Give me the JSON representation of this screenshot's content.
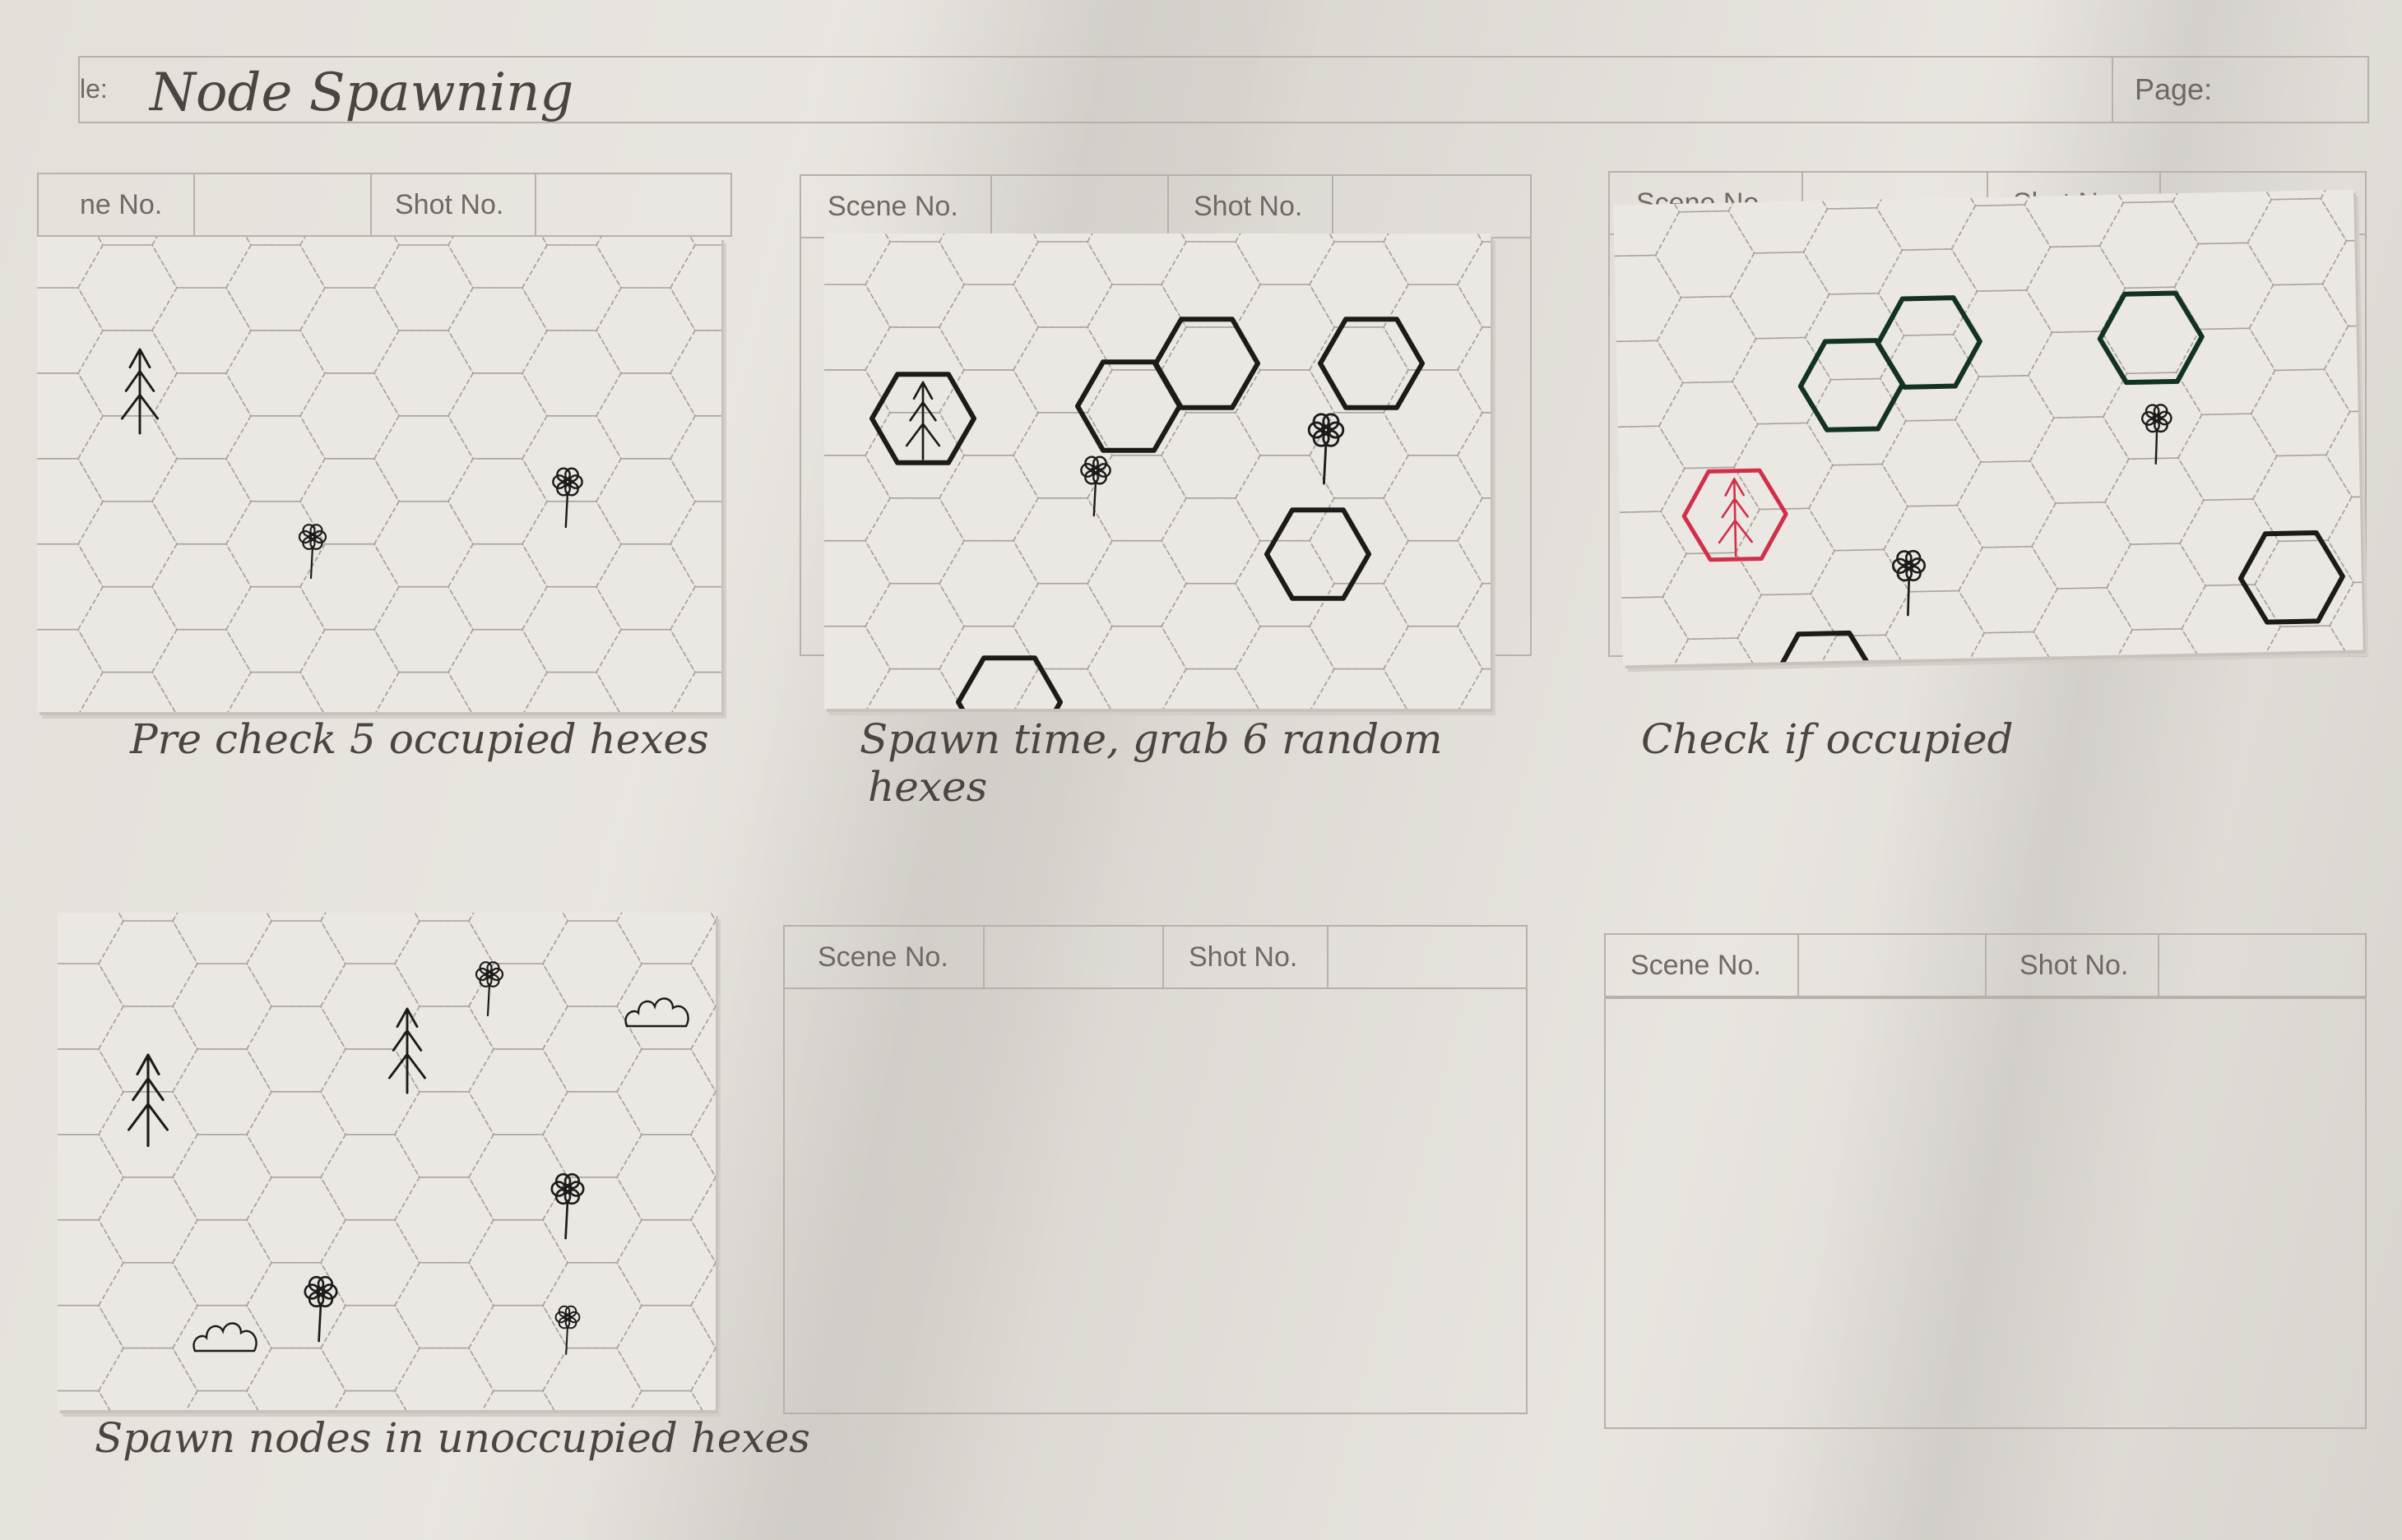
{
  "header": {
    "title_label": "le:",
    "title": "Node Spawning",
    "page_label": "Page:"
  },
  "panels": [
    {
      "scene_label": "ne No.",
      "shot_label": "Shot No.",
      "caption": "Pre check 5 occupied hexes",
      "caption_line2": ""
    },
    {
      "scene_label": "Scene No.",
      "shot_label": "Shot No.",
      "caption": "Spawn time, grab 6 random",
      "caption_line2": "hexes"
    },
    {
      "scene_label": "Scene No.",
      "shot_label": "Shot No.",
      "caption": "Check if occupied",
      "caption_line2": ""
    },
    {
      "scene_label": "",
      "shot_label": "",
      "caption": "Spawn nodes in unoccupied hexes",
      "caption_line2": ""
    },
    {
      "scene_label": "Scene No.",
      "shot_label": "Shot No.",
      "caption": "",
      "caption_line2": ""
    },
    {
      "scene_label": "Scene No.",
      "shot_label": "Shot No.",
      "caption": "",
      "caption_line2": ""
    }
  ],
  "icons": {
    "tree": "pine-tree-icon",
    "flower": "flower-icon",
    "bush": "bush-icon"
  },
  "colors": {
    "paper": "#e4dfd9",
    "card": "#ebe7e2",
    "ink": "#1d1b1a",
    "green_ink": "#123322",
    "red_ink": "#d0304a",
    "grid": "#a7a29c"
  }
}
